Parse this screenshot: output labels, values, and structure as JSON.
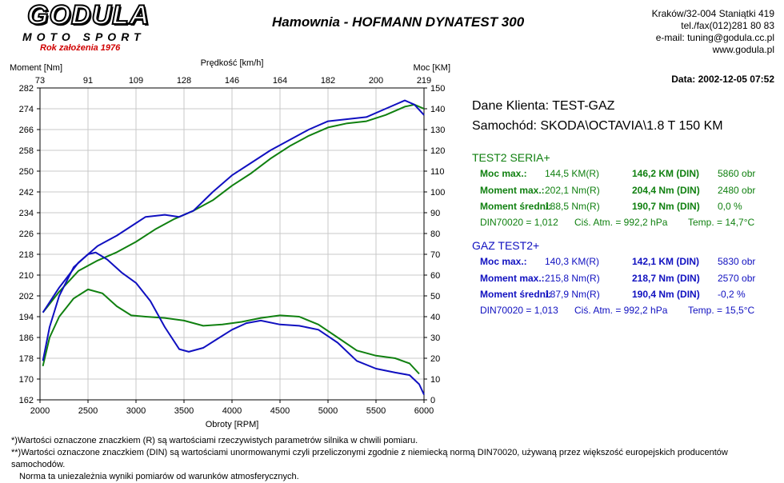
{
  "header": {
    "logo": "GODULA",
    "logo_sub": "MOTO SPORT",
    "logo_year": "Rok założenia 1976",
    "title": "Hamownia - HOFMANN DYNATEST 300",
    "contact": [
      "Kraków/32-004 Staniątki 419",
      "tel./fax(012)281 80 83",
      "e-mail: tuning@godula.cc.pl",
      "www.godula.pl"
    ],
    "date": "Data: 2002-12-05  07:52"
  },
  "client": {
    "line1": "Dane Klienta: TEST-GAZ",
    "line2": "Samochód: SKODA\\OCTAVIA\\1.8 T 150 KM"
  },
  "results": [
    {
      "title": "TEST2 SERIA+",
      "color": "#108010",
      "rows": [
        {
          "label": "Moc max.:",
          "r": "144,5 KM(R)",
          "din": "146,2 KM (DIN)",
          "extra": "5860 obr"
        },
        {
          "label": "Moment max.:",
          "r": "202,1 Nm(R)",
          "din": "204,4 Nm (DIN)",
          "extra": "2480 obr"
        },
        {
          "label": "Moment średni:",
          "r": "188,5 Nm(R)",
          "din": "190,7 Nm (DIN)",
          "extra": "0,0 %"
        }
      ],
      "din": "DIN70020 = 1,012",
      "atm": "Ciś. Atm. = 992,2 hPa",
      "temp": "Temp. = 14,7°C"
    },
    {
      "title": "GAZ TEST2+",
      "color": "#1010c0",
      "rows": [
        {
          "label": "Moc max.:",
          "r": "140,3 KM(R)",
          "din": "142,1 KM (DIN)",
          "extra": "5830 obr"
        },
        {
          "label": "Moment max.:",
          "r": "215,8 Nm(R)",
          "din": "218,7 Nm (DIN)",
          "extra": "2570 obr"
        },
        {
          "label": "Moment średni:",
          "r": "187,9 Nm(R)",
          "din": "190,4 Nm (DIN)",
          "extra": "-0,2 %"
        }
      ],
      "din": "DIN70020 = 1,013",
      "atm": "Ciś. Atm. = 992,2 hPa",
      "temp": "Temp. = 15,5°C"
    }
  ],
  "footnotes": [
    "*)Wartości oznaczone znaczkiem (R) są wartościami rzeczywistych parametrów silnika w chwili pomiaru.",
    "**)Wartości oznaczone znaczkiem (DIN) są wartościami unormowanymi czyli przeliczonymi zgodnie z niemiecką normą DIN70020, używaną przez większość europejskich producentów samochodów.",
    "Norma ta uniezależnia wyniki pomiarów od warunków atmosferycznych."
  ],
  "chart_data": {
    "type": "line",
    "xlabel": "Obroty [RPM]",
    "ylabel_left": "Moment [Nm]",
    "ylabel_right": "Moc [KM]",
    "xlabel_top": "Prędkość [km/h]",
    "xlim": [
      2000,
      6000
    ],
    "ylim_left": [
      162,
      282
    ],
    "ylim_right": [
      0,
      150
    ],
    "x_ticks": [
      "2000",
      "2500",
      "3000",
      "3500",
      "4000",
      "4500",
      "5000",
      "5500",
      "6000"
    ],
    "top_ticks": [
      "73",
      "91",
      "109",
      "128",
      "146",
      "164",
      "182",
      "200",
      "219"
    ],
    "left_ticks": [
      "162",
      "170",
      "178",
      "186",
      "194",
      "202",
      "210",
      "218",
      "226",
      "234",
      "242",
      "250",
      "258",
      "266",
      "274",
      "282"
    ],
    "right_ticks": [
      "0",
      "10",
      "20",
      "30",
      "40",
      "50",
      "60",
      "70",
      "80",
      "90",
      "100",
      "110",
      "120",
      "130",
      "140",
      "150"
    ],
    "grid": true,
    "series": [
      {
        "color": "#108010",
        "axis": "right",
        "x": [
          2030,
          2200,
          2400,
          2600,
          2800,
          3000,
          3200,
          3400,
          3600,
          3800,
          4000,
          4200,
          4400,
          4600,
          4800,
          5000,
          5200,
          5400,
          5600,
          5800,
          5900,
          6000
        ],
        "y": [
          42,
          52,
          62,
          67,
          71,
          76,
          82,
          87,
          91,
          96,
          103,
          109,
          116,
          122,
          127,
          131,
          133,
          134,
          137,
          141,
          142,
          140
        ]
      },
      {
        "color": "#108010",
        "axis": "left",
        "x": [
          2030,
          2100,
          2200,
          2350,
          2500,
          2650,
          2800,
          2950,
          3100,
          3300,
          3500,
          3700,
          3900,
          4100,
          4300,
          4500,
          4700,
          4900,
          5100,
          5300,
          5500,
          5700,
          5850,
          5950
        ],
        "y": [
          175,
          186,
          194,
          201,
          204.5,
          203,
          198,
          194.5,
          194,
          193.5,
          192.5,
          190.5,
          191,
          192,
          193.5,
          194.5,
          194,
          191,
          186,
          181,
          179,
          178,
          176,
          172
        ]
      },
      {
        "color": "#1010c0",
        "axis": "right",
        "x": [
          2030,
          2200,
          2400,
          2600,
          2800,
          3000,
          3100,
          3300,
          3450,
          3600,
          3800,
          4000,
          4200,
          4400,
          4600,
          4800,
          5000,
          5200,
          5400,
          5600,
          5800,
          5900,
          6000
        ],
        "y": [
          42,
          54,
          66,
          74,
          79,
          85,
          88,
          89,
          88,
          91,
          100,
          108,
          114,
          120,
          125,
          130,
          134,
          135,
          136,
          140,
          144,
          142,
          137
        ]
      },
      {
        "color": "#1010c0",
        "axis": "left",
        "x": [
          2030,
          2100,
          2200,
          2350,
          2500,
          2580,
          2700,
          2850,
          3000,
          3150,
          3300,
          3450,
          3550,
          3700,
          3850,
          4000,
          4150,
          4300,
          4500,
          4700,
          4900,
          5100,
          5300,
          5500,
          5700,
          5850,
          5950,
          6000
        ],
        "y": [
          177,
          190,
          202,
          213,
          218,
          218.7,
          216,
          211,
          207,
          200,
          190,
          181.5,
          180.5,
          182,
          185.5,
          189,
          191.5,
          192.5,
          191,
          190.5,
          189,
          184,
          177,
          174,
          172.5,
          171.5,
          168,
          164
        ]
      }
    ]
  }
}
